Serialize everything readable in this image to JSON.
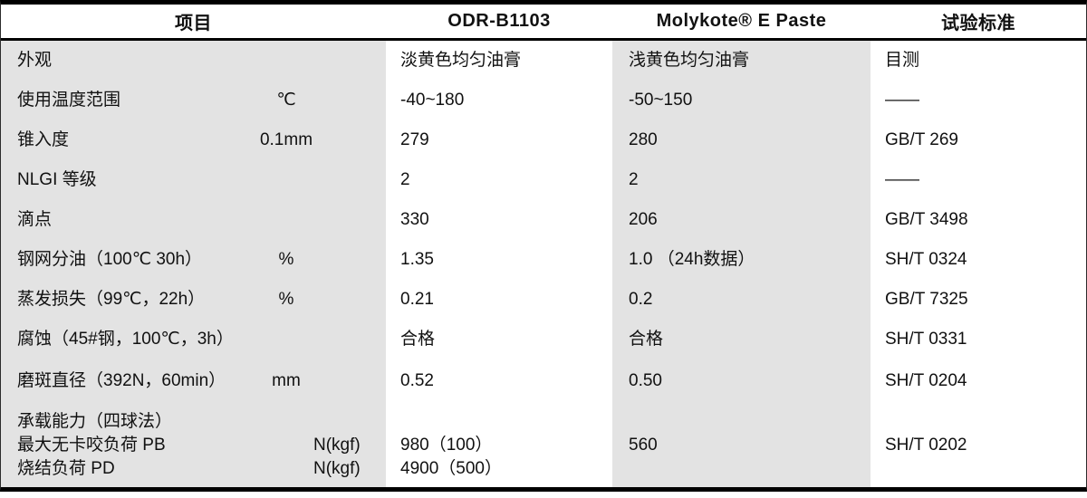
{
  "header": {
    "col_item": "项目",
    "col_odr": "ODR-B1103",
    "col_molykote": "Molykote® E Paste",
    "col_standard": "试验标准"
  },
  "rows": [
    {
      "item": "外观",
      "unit": "",
      "odr": "淡黄色均匀油膏",
      "molykote": "浅黄色均匀油膏",
      "standard": "目测"
    },
    {
      "item": "使用温度范围",
      "unit": "℃",
      "odr": "-40~180",
      "molykote": "-50~150",
      "standard": "——"
    },
    {
      "item": "锥入度",
      "unit": "0.1mm",
      "odr": "279",
      "molykote": "280",
      "standard": "GB/T 269"
    },
    {
      "item": "NLGI 等级",
      "unit": "",
      "odr": "2",
      "molykote": "2",
      "standard": "——"
    },
    {
      "item": "滴点",
      "unit": "",
      "odr": "330",
      "molykote": "206",
      "standard": "GB/T 3498"
    },
    {
      "item": "钢网分油（100℃ 30h）",
      "unit": "%",
      "odr": "1.35",
      "molykote": "1.0 （24h数据）",
      "standard": "SH/T 0324"
    },
    {
      "item": "蒸发损失（99℃，22h）",
      "unit": "%",
      "odr": "0.21",
      "molykote": "0.2",
      "standard": "GB/T 7325"
    },
    {
      "item": "腐蚀（45#钢，100℃，3h）",
      "unit": "",
      "odr": "合格",
      "molykote": "合格",
      "standard": "SH/T 0331"
    },
    {
      "item": "磨斑直径（392N，60min）",
      "unit": "mm",
      "odr": "0.52",
      "molykote": "0.50",
      "standard": "SH/T 0204"
    }
  ],
  "load_row": {
    "item_lines": [
      "承载能力（四球法）",
      "最大无卡咬负荷 PB",
      "烧结负荷 PD"
    ],
    "unit_lines": [
      "",
      "N(kgf)",
      "N(kgf)"
    ],
    "odr_lines": [
      "",
      "980（100）",
      "4900（500）"
    ],
    "molykote": "560",
    "standard": "SH/T 0202"
  },
  "colors": {
    "row_shade": "#e3e3e3",
    "rule": "#000000",
    "text": "#111111"
  }
}
